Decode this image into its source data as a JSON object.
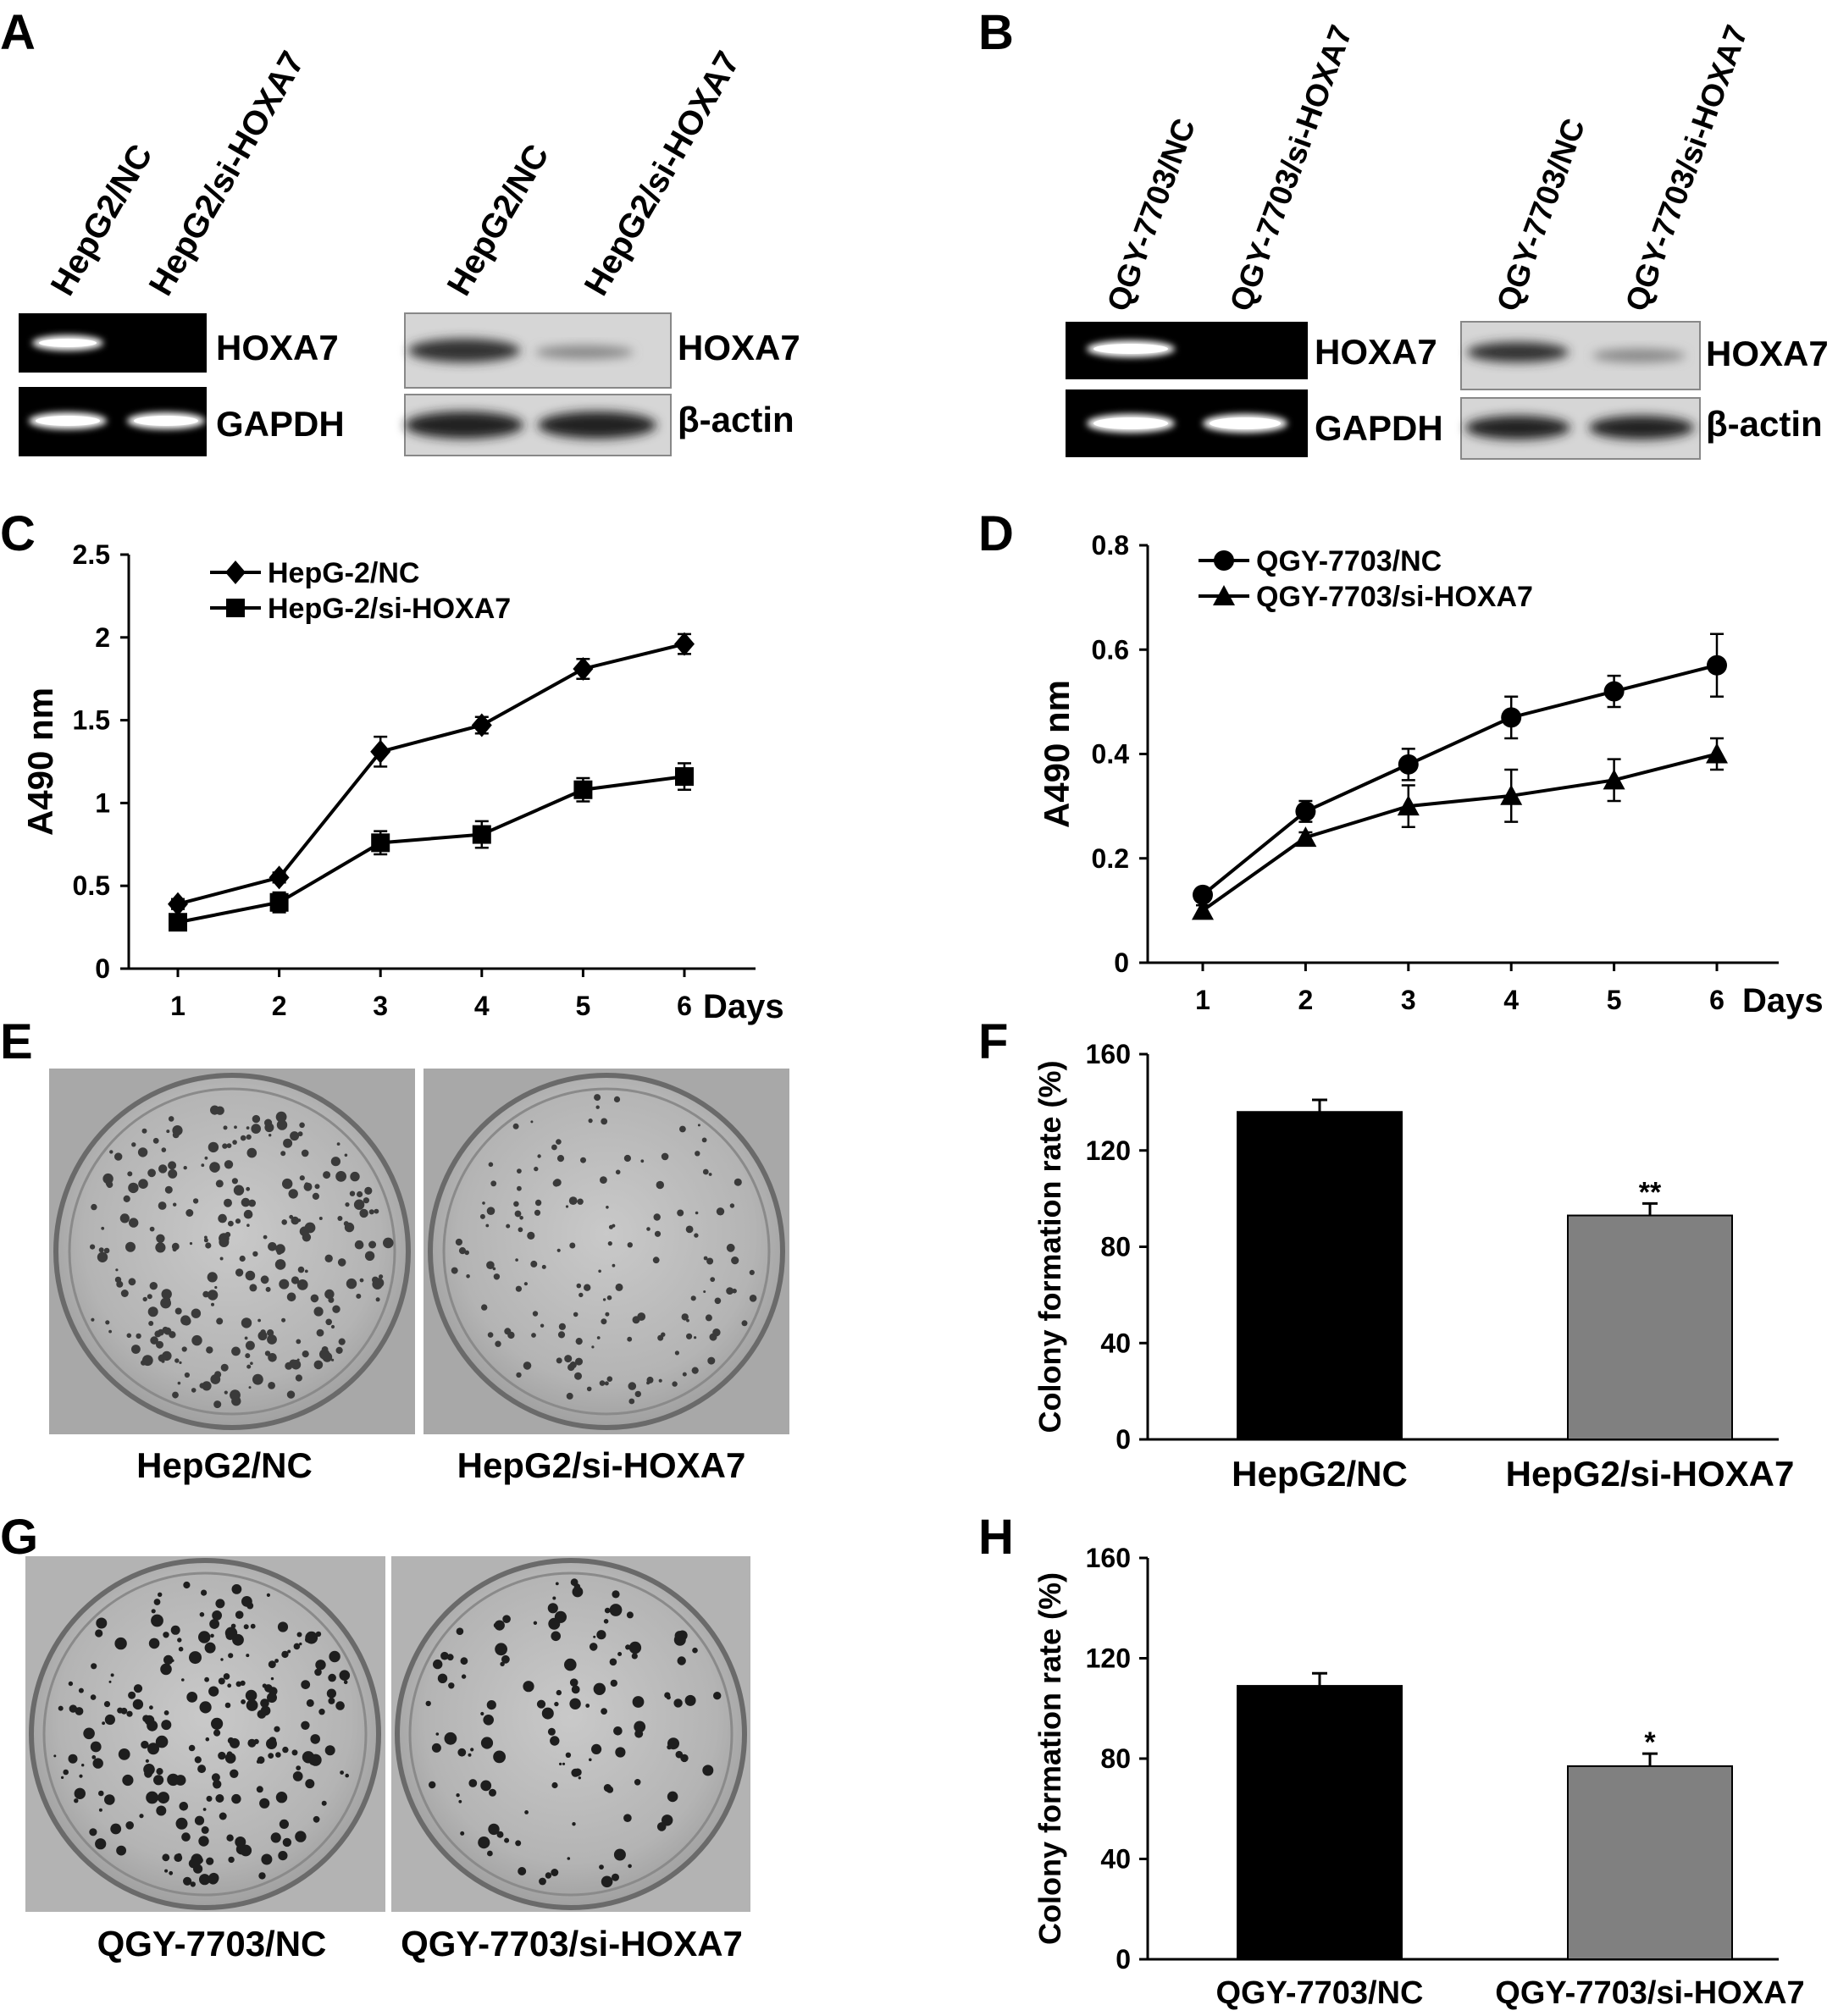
{
  "panels": {
    "A": {
      "letter": "A",
      "rtpcr_lanes": [
        "HepG2/NC",
        "HepG2/si-HOXA7"
      ],
      "western_lanes": [
        "HepG2/NC",
        "HepG2/si-HOXA7"
      ],
      "rtpcr_rows": [
        "HOXA7",
        "GAPDH"
      ],
      "western_rows": [
        "HOXA7",
        "β-actin"
      ]
    },
    "B": {
      "letter": "B",
      "rtpcr_lanes": [
        "QGY-7703/NC",
        "QGY-7703/si-HOXA7"
      ],
      "western_lanes": [
        "QGY-7703/NC",
        "QGY-7703/si-HOXA7"
      ],
      "rtpcr_rows": [
        "HOXA7",
        "GAPDH"
      ],
      "western_rows": [
        "HOXA7",
        "β-actin"
      ]
    },
    "E": {
      "letter": "E",
      "captions": [
        "HepG2/NC",
        "HepG2/si-HOXA7"
      ]
    },
    "G": {
      "letter": "G",
      "captions": [
        "QGY-7703/NC",
        "QGY-7703/si-HOXA7"
      ]
    }
  },
  "chart_data": [
    {
      "panel": "C",
      "type": "line",
      "ylabel": "A490 nm",
      "xlabel": "Days",
      "x": [
        1,
        2,
        3,
        4,
        5,
        6
      ],
      "xticks": [
        "1",
        "2",
        "3",
        "4",
        "5",
        "6"
      ],
      "ylim": [
        0,
        2.5
      ],
      "yticks": [
        "0",
        "0.5",
        "1",
        "1.5",
        "2",
        "2.5"
      ],
      "legend_position": "top-left",
      "series": [
        {
          "name": "HepG-2/NC",
          "marker": "diamond",
          "values": [
            0.39,
            0.55,
            1.31,
            1.47,
            1.81,
            1.96
          ],
          "errors": [
            0.03,
            0.03,
            0.09,
            0.05,
            0.06,
            0.06
          ]
        },
        {
          "name": "HepG-2/si-HOXA7",
          "marker": "square",
          "values": [
            0.28,
            0.4,
            0.76,
            0.81,
            1.08,
            1.16
          ],
          "errors": [
            0.03,
            0.06,
            0.07,
            0.08,
            0.07,
            0.08
          ]
        }
      ]
    },
    {
      "panel": "D",
      "type": "line",
      "ylabel": "A490 nm",
      "xlabel": "Days",
      "x": [
        1,
        2,
        3,
        4,
        5,
        6
      ],
      "xticks": [
        "1",
        "2",
        "3",
        "4",
        "5",
        "6"
      ],
      "ylim": [
        0,
        0.8
      ],
      "yticks": [
        "0",
        "0.2",
        "0.4",
        "0.6",
        "0.8"
      ],
      "legend_position": "top-left",
      "series": [
        {
          "name": "QGY-7703/NC",
          "marker": "circle",
          "values": [
            0.13,
            0.29,
            0.38,
            0.47,
            0.52,
            0.57
          ],
          "errors": [
            0.01,
            0.02,
            0.03,
            0.04,
            0.03,
            0.06
          ]
        },
        {
          "name": "QGY-7703/si-HOXA7",
          "marker": "triangle",
          "values": [
            0.1,
            0.24,
            0.3,
            0.32,
            0.35,
            0.4
          ],
          "errors": [
            0.01,
            0.01,
            0.04,
            0.05,
            0.04,
            0.03
          ]
        }
      ]
    },
    {
      "panel": "F",
      "type": "bar",
      "ylabel": "Colony formation rate (%)",
      "categories": [
        "HepG2/NC",
        "HepG2/si-HOXA7"
      ],
      "values": [
        136,
        93
      ],
      "errors": [
        5,
        5
      ],
      "significance": [
        "",
        "**"
      ],
      "colors": [
        "#000000",
        "#808080"
      ],
      "ylim": [
        0,
        160
      ],
      "yticks": [
        "0",
        "40",
        "80",
        "120",
        "160"
      ]
    },
    {
      "panel": "H",
      "type": "bar",
      "ylabel": "Colony formation rate (%)",
      "categories": [
        "QGY-7703/NC",
        "QGY-7703/si-HOXA7"
      ],
      "values": [
        109,
        77
      ],
      "errors": [
        5,
        5
      ],
      "significance": [
        "",
        "*"
      ],
      "colors": [
        "#000000",
        "#808080"
      ],
      "ylim": [
        0,
        160
      ],
      "yticks": [
        "0",
        "40",
        "80",
        "120",
        "160"
      ]
    }
  ]
}
